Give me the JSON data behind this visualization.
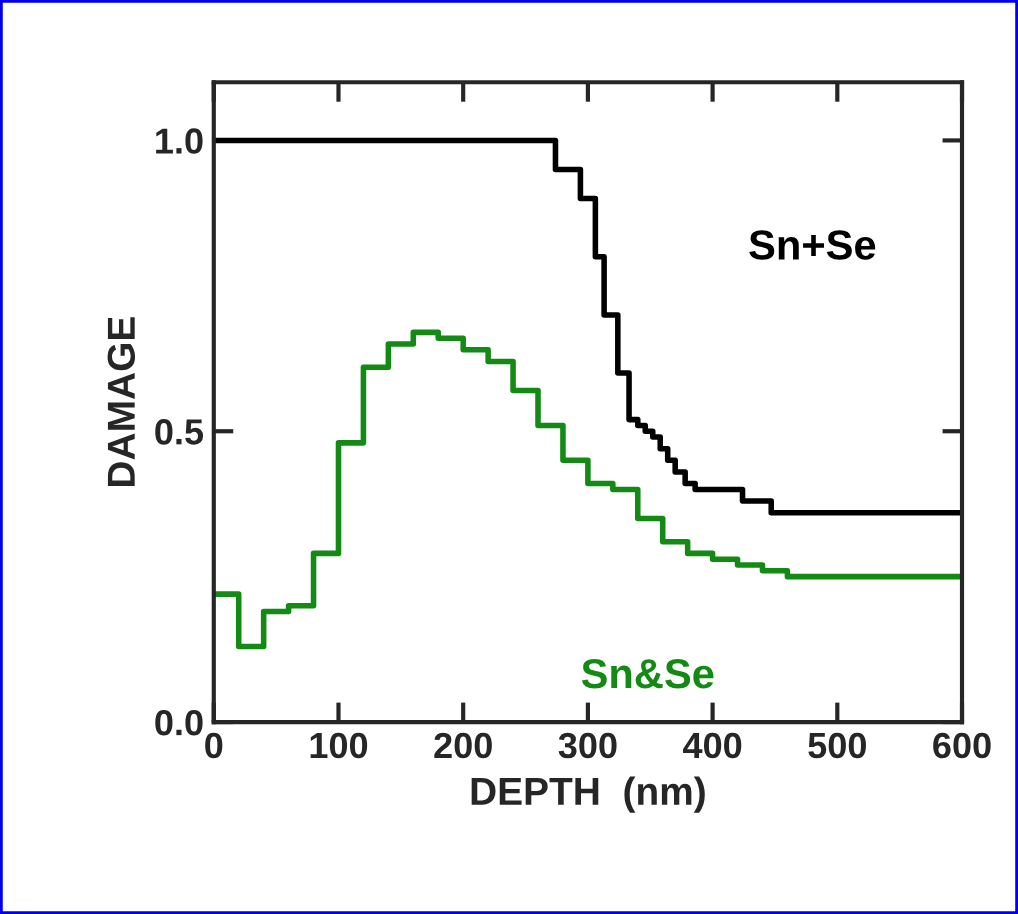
{
  "chart_data": {
    "type": "step",
    "xlabel": "DEPTH  (nm)",
    "ylabel": "DAMAGE",
    "series": [
      {
        "name": "Sn+Se",
        "color": "#000000",
        "x": [
          0,
          274,
          294,
          306,
          313,
          324,
          333,
          340,
          346,
          352,
          358,
          364,
          370,
          378,
          386,
          424,
          447,
          600
        ],
        "values": [
          1.0,
          0.95,
          0.9,
          0.8,
          0.7,
          0.6,
          0.52,
          0.51,
          0.5,
          0.49,
          0.47,
          0.45,
          0.43,
          0.41,
          0.4,
          0.38,
          0.36,
          0.36
        ]
      },
      {
        "name": "Sn&Se",
        "color": "#138a13",
        "x": [
          0,
          20,
          40,
          60,
          80,
          100,
          120,
          140,
          160,
          180,
          200,
          220,
          240,
          260,
          280,
          300,
          320,
          340,
          360,
          380,
          400,
          420,
          440,
          460,
          600
        ],
        "values": [
          0.22,
          0.13,
          0.19,
          0.2,
          0.29,
          0.48,
          0.61,
          0.65,
          0.67,
          0.66,
          0.64,
          0.62,
          0.57,
          0.51,
          0.45,
          0.41,
          0.4,
          0.35,
          0.31,
          0.29,
          0.28,
          0.27,
          0.26,
          0.25,
          0.25
        ]
      }
    ],
    "xlim": [
      0,
      600
    ],
    "xticks": [
      0,
      100,
      200,
      300,
      400,
      500,
      600
    ],
    "ylim": [
      0,
      1.1
    ],
    "yticks": [
      {
        "value": 0,
        "label": "0.0"
      },
      {
        "value": 0.5,
        "label": "0.5"
      },
      {
        "value": 1.0,
        "label": "1.0"
      }
    ],
    "grid": false,
    "legend": false
  }
}
